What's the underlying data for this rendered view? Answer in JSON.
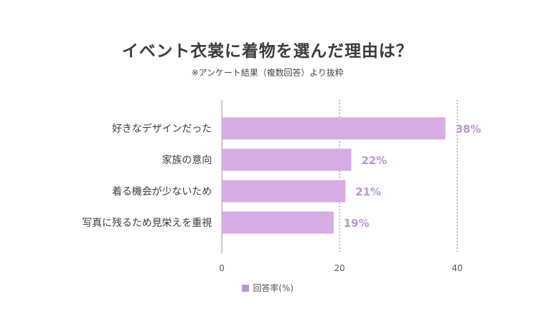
{
  "chart_data": {
    "type": "bar",
    "orientation": "horizontal",
    "title": "イベント衣裳に着物を選んだ理由は？",
    "subtitle": "※アンケート結果（複数回答）より抜粋",
    "categories": [
      "好きなデザインだった",
      "家族の意向",
      "着る機会が少ないため",
      "写真に残るため見栄えを重視"
    ],
    "series": [
      {
        "name": "回答率(%)",
        "values": [
          38,
          22,
          21,
          19
        ]
      }
    ],
    "data_labels": [
      "38%",
      "22%",
      "21%",
      "19%"
    ],
    "x_ticks": [
      "0",
      "20",
      "40"
    ],
    "xlim": [
      0,
      40
    ],
    "grid": "vertical-dotted",
    "legend": "bottom-center",
    "colors": {
      "bar": "#d6ace6",
      "label": "#b996d2",
      "legend_swatch": "#b996d2"
    }
  }
}
